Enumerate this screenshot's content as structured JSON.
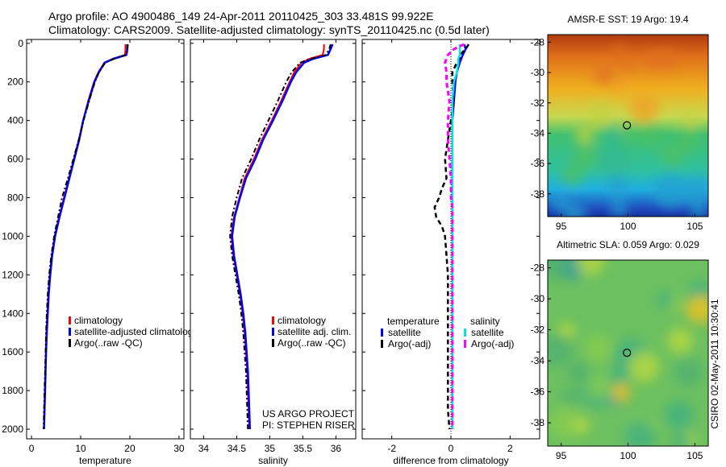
{
  "header": {
    "line1": "Argo profile: AO 4900486_149 24-Apr-2011 20110425_303 33.481S 99.922E",
    "line2": "Climatology: CARS2009. Satellite-adjusted climatology: synTS_20110425.nc (0.5d later)"
  },
  "credit": "CSIRO 02-May-2011 10:30:41",
  "project": {
    "line1": "US ARGO PROJECT",
    "line2": "PI: STEPHEN RISER"
  },
  "colors": {
    "climatology": "#ff0000",
    "satellite": "#0000ff",
    "argo": "#000000",
    "salinity_satellite": "#00e5e5",
    "salinity_argo": "#ff00ff"
  },
  "chart_data": [
    {
      "id": "temperature",
      "type": "line",
      "xlabel": "temperature",
      "xlim": [
        -1,
        31
      ],
      "xticks": [
        0,
        10,
        20,
        30
      ],
      "ylim": [
        2050,
        -20
      ],
      "yticks": [
        0,
        200,
        400,
        600,
        800,
        1000,
        1200,
        1400,
        1600,
        1800,
        2000
      ],
      "depth": [
        5,
        30,
        60,
        80,
        100,
        150,
        200,
        300,
        400,
        500,
        600,
        700,
        800,
        900,
        1000,
        1100,
        1200,
        1300,
        1400,
        1500,
        1600,
        1700,
        1800,
        1900,
        2000
      ],
      "series": [
        {
          "name": "climatology",
          "values": [
            19.1,
            19.1,
            19.0,
            16.5,
            14.8,
            13.6,
            12.7,
            11.5,
            10.5,
            9.6,
            8.6,
            7.6,
            6.6,
            5.6,
            4.7,
            4.1,
            3.7,
            3.4,
            3.2,
            3.0,
            2.9,
            2.8,
            2.7,
            2.6,
            2.5
          ]
        },
        {
          "name": "satellite-adjusted climatology",
          "values": [
            19.5,
            19.5,
            19.3,
            16.7,
            14.9,
            13.7,
            12.8,
            11.6,
            10.5,
            9.7,
            8.7,
            7.7,
            6.7,
            5.7,
            4.8,
            4.2,
            3.8,
            3.5,
            3.3,
            3.1,
            2.95,
            2.85,
            2.75,
            2.65,
            2.55
          ]
        },
        {
          "name": "Argo(..raw -QC)",
          "values": [
            19.6,
            19.5,
            19.3,
            16.8,
            15.0,
            13.7,
            12.9,
            11.7,
            10.6,
            9.6,
            8.5,
            7.4,
            6.2,
            5.4,
            4.6,
            4.0,
            3.6,
            3.3,
            3.1,
            2.95,
            2.85,
            2.75,
            2.65,
            2.55,
            2.45
          ]
        }
      ],
      "legend": [
        "climatology",
        "satellite-adjusted climatology",
        "Argo(..raw -QC)"
      ]
    },
    {
      "id": "salinity",
      "type": "line",
      "xlabel": "salinity",
      "xlim": [
        33.8,
        36.3
      ],
      "xticks": [
        34,
        34.5,
        35,
        35.5,
        36
      ],
      "xticklabels": [
        "34",
        "34.5",
        "35",
        "35.5",
        "36"
      ],
      "ylim": [
        2050,
        -20
      ],
      "depth": [
        5,
        30,
        60,
        80,
        100,
        150,
        200,
        300,
        400,
        500,
        600,
        700,
        800,
        900,
        1000,
        1100,
        1200,
        1300,
        1400,
        1500,
        1600,
        1700,
        1800,
        1900,
        2000
      ],
      "series": [
        {
          "name": "climatology",
          "values": [
            35.82,
            35.82,
            35.8,
            35.6,
            35.48,
            35.37,
            35.3,
            35.17,
            35.03,
            34.88,
            34.76,
            34.62,
            34.54,
            34.46,
            34.42,
            34.45,
            34.5,
            34.55,
            34.59,
            34.62,
            34.64,
            34.66,
            34.67,
            34.68,
            34.69
          ]
        },
        {
          "name": "satellite adj. clim.",
          "values": [
            35.95,
            35.92,
            35.88,
            35.66,
            35.52,
            35.4,
            35.32,
            35.19,
            35.05,
            34.9,
            34.78,
            34.64,
            34.55,
            34.47,
            34.43,
            34.46,
            34.51,
            34.56,
            34.6,
            34.63,
            34.65,
            34.67,
            34.68,
            34.69,
            34.7
          ]
        },
        {
          "name": "Argo(..raw -QC)",
          "values": [
            35.92,
            35.9,
            35.85,
            35.62,
            35.46,
            35.33,
            35.25,
            35.12,
            34.98,
            34.84,
            34.72,
            34.58,
            34.5,
            34.43,
            34.4,
            34.43,
            34.48,
            34.53,
            34.57,
            34.6,
            34.62,
            34.64,
            34.65,
            34.66,
            34.67
          ]
        }
      ],
      "legend": [
        "climatology",
        "satellite adj. clim.",
        "Argo(..raw -QC)"
      ]
    },
    {
      "id": "difference",
      "type": "line",
      "xlabel": "difference from climatology",
      "xlim": [
        -3,
        3
      ],
      "xticks": [
        -2,
        0,
        2
      ],
      "ylim": [
        2050,
        -20
      ],
      "depth": [
        5,
        30,
        60,
        80,
        100,
        150,
        200,
        300,
        400,
        500,
        600,
        700,
        750,
        800,
        850,
        900,
        950,
        1000,
        1100,
        1200,
        1300,
        1400,
        1500,
        1600,
        1700,
        1800,
        1900,
        2000
      ],
      "series": [
        {
          "name": "temperature satellite",
          "values": [
            0.45,
            0.5,
            0.4,
            0.35,
            0.3,
            0.2,
            0.15,
            0.1,
            0.05,
            0.05,
            0.05,
            0.05,
            0.05,
            0.05,
            0.05,
            0.05,
            0.05,
            0.05,
            0.05,
            0.05,
            0.05,
            0.05,
            0.05,
            0.05,
            0.05,
            0.05,
            0.05,
            0.05
          ]
        },
        {
          "name": "temperature Argo(-adj)",
          "values": [
            0.6,
            0.5,
            0.3,
            0.3,
            0.2,
            0.05,
            0.05,
            0.1,
            0.0,
            -0.1,
            -0.2,
            -0.15,
            -0.3,
            -0.4,
            -0.55,
            -0.5,
            -0.3,
            -0.2,
            -0.15,
            -0.1,
            -0.1,
            -0.1,
            -0.1,
            -0.1,
            -0.1,
            -0.1,
            -0.1,
            -0.05
          ]
        },
        {
          "name": "salinity satellite",
          "values": [
            0.3,
            0.3,
            0.3,
            0.25,
            0.25,
            0.2,
            0.1,
            0.05,
            0.05,
            0.05,
            0.05,
            0.05,
            0.05,
            0.05,
            0.05,
            0.05,
            0.05,
            0.05,
            0.05,
            0.05,
            0.05,
            0.05,
            0.05,
            0.05,
            0.05,
            0.05,
            0.05,
            0.05
          ]
        },
        {
          "name": "salinity Argo(-adj)",
          "values": [
            0.45,
            0.1,
            -0.1,
            -0.15,
            -0.2,
            -0.15,
            -0.15,
            -0.05,
            -0.1,
            -0.1,
            -0.05,
            0.0,
            0.0,
            0.0,
            0.05,
            0.05,
            0.05,
            0.05,
            0.05,
            0.05,
            0.05,
            0.05,
            0.05,
            0.05,
            0.05,
            0.05,
            0.05,
            0.05
          ]
        }
      ],
      "legend_headers": [
        "temperature",
        "salinity"
      ],
      "legend": [
        "satellite",
        "Argo(-adj)",
        "satellite",
        "Argo(-adj)"
      ]
    },
    {
      "id": "sst_map",
      "type": "heatmap",
      "title": "AMSR-E SST: 19 Argo: 19.4",
      "xlim": [
        94,
        106
      ],
      "xticks": [
        95,
        100,
        105
      ],
      "ylim": [
        -39.5,
        -27.5
      ],
      "yticks": [
        -28,
        -30,
        -32,
        -34,
        -36,
        -38
      ],
      "marker": [
        99.922,
        -33.481
      ]
    },
    {
      "id": "sla_map",
      "type": "heatmap",
      "title": "Altimetric SLA: 0.059 Argo: 0.029",
      "xlim": [
        94,
        106
      ],
      "xticks": [
        95,
        100,
        105
      ],
      "ylim": [
        -39.5,
        -27.5
      ],
      "yticks": [
        -28,
        -30,
        -32,
        -34,
        -36,
        -38
      ],
      "marker": [
        99.922,
        -33.481
      ]
    }
  ]
}
